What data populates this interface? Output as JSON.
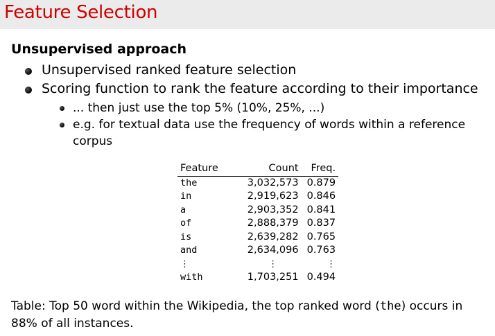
{
  "slide": {
    "title": "Feature Selection",
    "block_title": "Unsupervised approach",
    "bullets": [
      "Unsupervised ranked feature selection",
      "Scoring function to rank the feature according to their importance"
    ],
    "sub_bullets": [
      "... then just use the top 5% (10%, 25%, ...)",
      "e.g. for textual data use the frequency of words within a reference",
      "corpus"
    ]
  },
  "table": {
    "headers": [
      "Feature",
      "Count",
      "Freq."
    ],
    "rows": [
      {
        "word": "the",
        "count": "3,032,573",
        "freq": "0.879"
      },
      {
        "word": "in",
        "count": "2,919,623",
        "freq": "0.846"
      },
      {
        "word": "a",
        "count": "2,903,352",
        "freq": "0.841"
      },
      {
        "word": "of",
        "count": "2,888,379",
        "freq": "0.837"
      },
      {
        "word": "is",
        "count": "2,639,282",
        "freq": "0.765"
      },
      {
        "word": "and",
        "count": "2,634,096",
        "freq": "0.763"
      }
    ],
    "ellipsis": "⋮",
    "last_row": {
      "word": "with",
      "count": "1,703,251",
      "freq": "0.494"
    }
  },
  "caption": {
    "label": "Table:",
    "text_before": " Top 50 word within the Wikipedia, the top ranked word (",
    "code": "the",
    "text_after": ") occurs in 88% of all instances."
  }
}
